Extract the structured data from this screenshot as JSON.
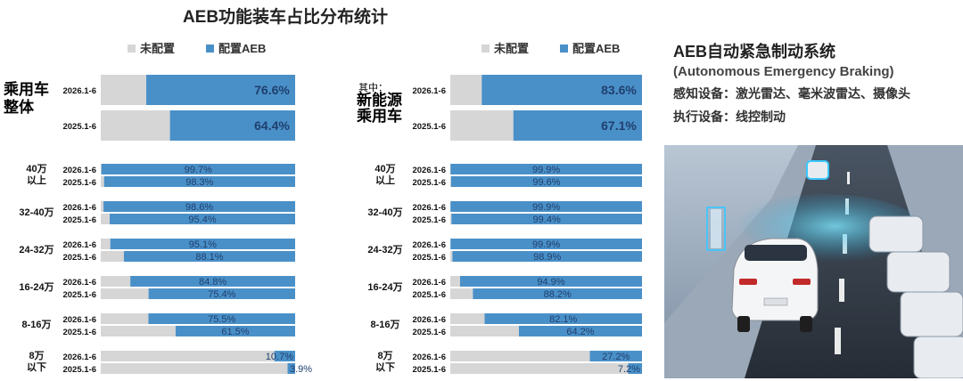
{
  "title": "AEB功能装车占比分布统计",
  "legend": {
    "not_configured": "未配置",
    "configured": "配置AEB"
  },
  "colors": {
    "configured": "#4a90c8",
    "not_configured": "#d6d6d6",
    "value_text": "#1f3f6e"
  },
  "info": {
    "heading": "AEB自动紧急制动系统",
    "subheading": "(Autonomous Emergency Braking)",
    "sensors": "感知设备：激光雷达、毫米波雷达、摄像头",
    "actuators": "执行设备：线控制动"
  },
  "chart_data": [
    {
      "type": "bar",
      "orientation": "horizontal",
      "stacked": true,
      "title": "乘用车整体",
      "title_lines": [
        "乘用车",
        "整体"
      ],
      "ylim": [
        0,
        100
      ],
      "summary": [
        {
          "period": "2026.1-6",
          "value": 76.6,
          "label": "76.6%"
        },
        {
          "period": "2025.1-6",
          "value": 64.4,
          "label": "64.4%"
        }
      ],
      "groups": [
        {
          "category_lines": [
            "40万",
            "以上"
          ],
          "rows": [
            {
              "period": "2026.1-6",
              "value": 99.7,
              "label": "99.7%"
            },
            {
              "period": "2025.1-6",
              "value": 98.3,
              "label": "98.3%"
            }
          ]
        },
        {
          "category_lines": [
            "32-40万"
          ],
          "rows": [
            {
              "period": "2026.1-6",
              "value": 98.6,
              "label": "98.6%"
            },
            {
              "period": "2025.1-6",
              "value": 95.4,
              "label": "95.4%"
            }
          ]
        },
        {
          "category_lines": [
            "24-32万"
          ],
          "rows": [
            {
              "period": "2026.1-6",
              "value": 95.1,
              "label": "95.1%"
            },
            {
              "period": "2025.1-6",
              "value": 88.1,
              "label": "88.1%"
            }
          ]
        },
        {
          "category_lines": [
            "16-24万"
          ],
          "rows": [
            {
              "period": "2026.1-6",
              "value": 84.8,
              "label": "84.8%"
            },
            {
              "period": "2025.1-6",
              "value": 75.4,
              "label": "75.4%"
            }
          ]
        },
        {
          "category_lines": [
            "8-16万"
          ],
          "rows": [
            {
              "period": "2026.1-6",
              "value": 75.5,
              "label": "75.5%"
            },
            {
              "period": "2025.1-6",
              "value": 61.5,
              "label": "61.5%"
            }
          ]
        },
        {
          "category_lines": [
            "8万",
            "以下"
          ],
          "rows": [
            {
              "period": "2026.1-6",
              "value": 10.7,
              "label": "10.7%"
            },
            {
              "period": "2025.1-6",
              "value": 3.9,
              "label": "3.9%"
            }
          ]
        }
      ]
    },
    {
      "type": "bar",
      "orientation": "horizontal",
      "stacked": true,
      "title": "其中：新能源乘用车",
      "title_prefix": "其中：",
      "title_lines": [
        "新能源",
        "乘用车"
      ],
      "ylim": [
        0,
        100
      ],
      "summary": [
        {
          "period": "2026.1-6",
          "value": 83.6,
          "label": "83.6%"
        },
        {
          "period": "2025.1-6",
          "value": 67.1,
          "label": "67.1%"
        }
      ],
      "groups": [
        {
          "category_lines": [
            "40万",
            "以上"
          ],
          "rows": [
            {
              "period": "2026.1-6",
              "value": 99.9,
              "label": "99.9%"
            },
            {
              "period": "2025.1-6",
              "value": 99.6,
              "label": "99.6%"
            }
          ]
        },
        {
          "category_lines": [
            "32-40万"
          ],
          "rows": [
            {
              "period": "2026.1-6",
              "value": 99.9,
              "label": "99.9%"
            },
            {
              "period": "2025.1-6",
              "value": 99.4,
              "label": "99.4%"
            }
          ]
        },
        {
          "category_lines": [
            "24-32万"
          ],
          "rows": [
            {
              "period": "2026.1-6",
              "value": 99.9,
              "label": "99.9%"
            },
            {
              "period": "2025.1-6",
              "value": 98.9,
              "label": "98.9%"
            }
          ]
        },
        {
          "category_lines": [
            "16-24万"
          ],
          "rows": [
            {
              "period": "2026.1-6",
              "value": 94.9,
              "label": "94.9%"
            },
            {
              "period": "2025.1-6",
              "value": 88.2,
              "label": "88.2%"
            }
          ]
        },
        {
          "category_lines": [
            "8-16万"
          ],
          "rows": [
            {
              "period": "2026.1-6",
              "value": 82.1,
              "label": "82.1%"
            },
            {
              "period": "2025.1-6",
              "value": 64.2,
              "label": "64.2%"
            }
          ]
        },
        {
          "category_lines": [
            "8万",
            "以下"
          ],
          "rows": [
            {
              "period": "2026.1-6",
              "value": 27.2,
              "label": "27.2%"
            },
            {
              "period": "2025.1-6",
              "value": 7.2,
              "label": "7.2%"
            }
          ]
        }
      ]
    }
  ]
}
